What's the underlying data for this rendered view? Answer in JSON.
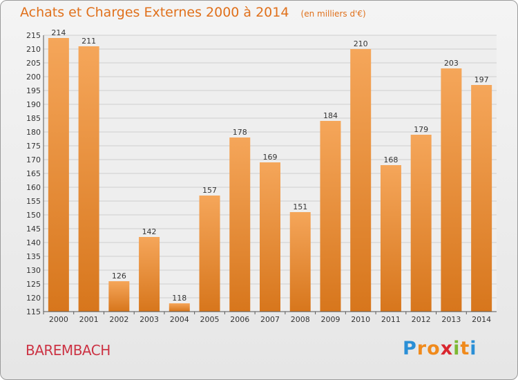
{
  "title": "Achats et Charges Externes 2000 à 2014",
  "unit_note": "(en milliers d'€)",
  "town": "BAREMBACH",
  "logo": {
    "letters": [
      "P",
      "r",
      "o",
      "x",
      "i",
      "t",
      "i"
    ],
    "colors": [
      "#2a8fd6",
      "#f08a1c",
      "#f08a1c",
      "#d9262e",
      "#7cb832",
      "#f08a1c",
      "#2a8fd6"
    ]
  },
  "colors": {
    "bar_light": "#f5a65a",
    "bar_dark": "#d7761c",
    "title": "#e0701b",
    "town": "#cc3344"
  },
  "chart_data": {
    "type": "bar",
    "title": "Achats et Charges Externes 2000 à 2014",
    "subtitle": "(en milliers d'€)",
    "categories": [
      "2000",
      "2001",
      "2002",
      "2003",
      "2004",
      "2005",
      "2006",
      "2007",
      "2008",
      "2009",
      "2010",
      "2011",
      "2012",
      "2013",
      "2014"
    ],
    "values": [
      214,
      211,
      126,
      142,
      118,
      157,
      178,
      169,
      151,
      184,
      210,
      168,
      179,
      203,
      197
    ],
    "ylim": [
      115,
      215
    ],
    "yticks": [
      115,
      120,
      125,
      130,
      135,
      140,
      145,
      150,
      155,
      160,
      165,
      170,
      175,
      180,
      185,
      190,
      195,
      200,
      205,
      210,
      215
    ],
    "grid": true,
    "xlabel": "",
    "ylabel": ""
  }
}
